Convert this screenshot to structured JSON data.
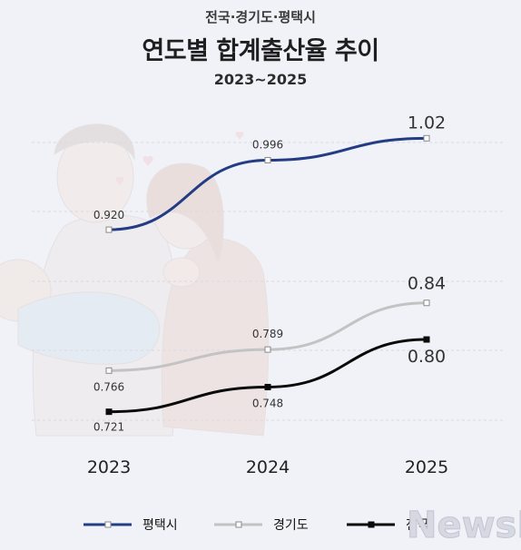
{
  "header": {
    "kicker": "전국·경기도·평택시",
    "title": "연도별 합계출산율 추이",
    "period": "2023~2025"
  },
  "watermark": "NewsDa",
  "colors": {
    "background": "#f1f2f8",
    "pyeongtaek": "#233c84",
    "gyeonggi": "#c3c3c3",
    "national": "#0a0a0a"
  },
  "chart_data": {
    "type": "line",
    "x": [
      "2023",
      "2024",
      "2025"
    ],
    "series": [
      {
        "name": "평택시",
        "values": [
          0.92,
          0.996,
          1.02
        ],
        "labels": [
          "0.920",
          "0.996",
          "1.02"
        ],
        "color": "#233c84",
        "marker": "square-hollow"
      },
      {
        "name": "경기도",
        "values": [
          0.766,
          0.789,
          0.84
        ],
        "labels": [
          "0.766",
          "0.789",
          "0.84"
        ],
        "color": "#c3c3c3",
        "marker": "square-hollow"
      },
      {
        "name": "전국",
        "values": [
          0.721,
          0.748,
          0.8
        ],
        "labels": [
          "0.721",
          "0.748",
          "0.80"
        ],
        "color": "#0a0a0a",
        "marker": "square-filled"
      }
    ],
    "ylim": [
      0.68,
      1.06
    ],
    "grid": true,
    "legend": "bottom"
  }
}
